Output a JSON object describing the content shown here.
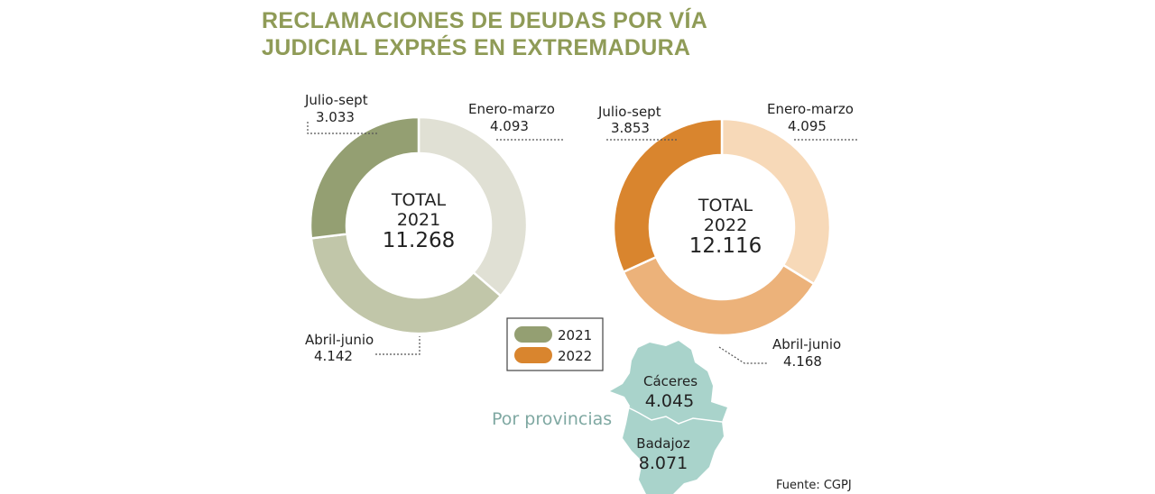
{
  "title_line1": "RECLAMACIONES DE DEUDAS POR VÍA",
  "title_line2": "JUDICIAL EXPRÉS EN EXTREMADURA",
  "chart_data": [
    {
      "type": "pie",
      "variant": "donut",
      "year": "2021",
      "center_label": [
        "TOTAL",
        "2021",
        "11.268"
      ],
      "total": 11268,
      "slices": [
        {
          "label": "Enero-marzo",
          "value": 4093,
          "display": "4.093",
          "color": "#e0e0d4"
        },
        {
          "label": "Abril-junio",
          "value": 4142,
          "display": "4.142",
          "color": "#c1c6a9"
        },
        {
          "label": "Julio-sept",
          "value": 3033,
          "display": "3.033",
          "color": "#949f72"
        }
      ]
    },
    {
      "type": "pie",
      "variant": "donut",
      "year": "2022",
      "center_label": [
        "TOTAL",
        "2022",
        "12.116"
      ],
      "total": 12116,
      "slices": [
        {
          "label": "Enero-marzo",
          "value": 4095,
          "display": "4.095",
          "color": "#f7d9b8"
        },
        {
          "label": "Abril-junio",
          "value": 4168,
          "display": "4.168",
          "color": "#ecb27a"
        },
        {
          "label": "Julio-sept",
          "value": 3853,
          "display": "3.853",
          "color": "#d9852e"
        }
      ]
    }
  ],
  "legend": [
    {
      "label": "2021",
      "color": "#949f72"
    },
    {
      "label": "2022",
      "color": "#d9852e"
    }
  ],
  "provinces": {
    "heading": "Por provincias",
    "map_color": "#a9d3cb",
    "items": [
      {
        "name": "Cáceres",
        "value": "4.045"
      },
      {
        "name": "Badajoz",
        "value": "8.071"
      }
    ]
  },
  "source": "Fuente: CGPJ"
}
